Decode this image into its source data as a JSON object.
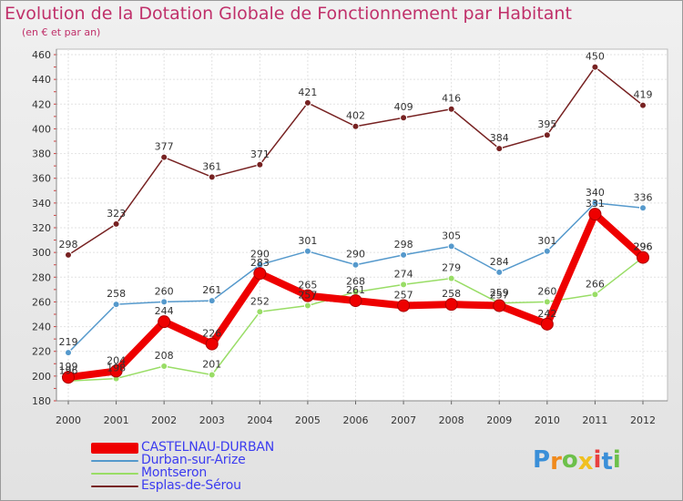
{
  "chart_data": {
    "type": "line",
    "title": "Evolution de la Dotation Globale de Fonctionnement par Habitant",
    "subtitle": "(en € et par an)",
    "categories": [
      "2000",
      "2001",
      "2002",
      "2003",
      "2004",
      "2005",
      "2006",
      "2007",
      "2008",
      "2009",
      "2010",
      "2011",
      "2012"
    ],
    "ylim": [
      180,
      460
    ],
    "yticks": [
      180,
      200,
      220,
      240,
      260,
      280,
      300,
      320,
      340,
      360,
      380,
      400,
      420,
      440,
      460
    ],
    "grid": true,
    "legend_position": "bottom-left",
    "series": [
      {
        "name": "CASTELNAU-DURBAN",
        "color": "#ee0000",
        "values": [
          199,
          204,
          244,
          226,
          283,
          265,
          261,
          257,
          258,
          257,
          242,
          331,
          296
        ]
      },
      {
        "name": "Durban-sur-Arize",
        "color": "#5599cc",
        "values": [
          219,
          258,
          260,
          261,
          290,
          301,
          290,
          298,
          305,
          284,
          301,
          340,
          336
        ]
      },
      {
        "name": "Montseron",
        "color": "#99dd66",
        "values": [
          196,
          198,
          208,
          201,
          252,
          257,
          268,
          274,
          279,
          259,
          260,
          266,
          296
        ]
      },
      {
        "name": "Esplas-de-Sérou",
        "color": "#772222",
        "values": [
          298,
          323,
          377,
          361,
          371,
          421,
          402,
          409,
          416,
          384,
          395,
          450,
          419
        ]
      }
    ]
  },
  "logo": {
    "letters": [
      "P",
      "r",
      "o",
      "x",
      "i",
      "t",
      "i"
    ],
    "colors": [
      "#3a8fd8",
      "#f08a1c",
      "#6cc04a",
      "#f0c020",
      "#e84040",
      "#3a8fd8",
      "#6cc04a"
    ]
  }
}
